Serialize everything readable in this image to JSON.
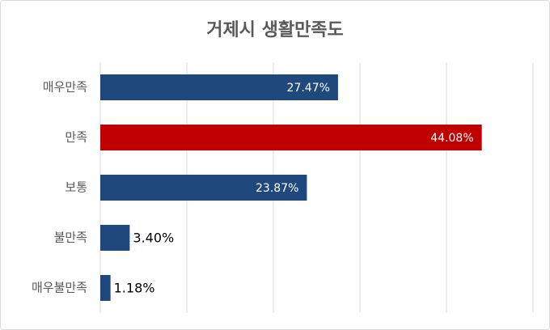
{
  "chart_data": {
    "type": "barh",
    "title": "거제시 생활만족도",
    "categories": [
      "매우만족",
      "만족",
      "보통",
      "불만족",
      "매우불만족"
    ],
    "values": [
      27.47,
      44.08,
      23.87,
      3.4,
      1.18
    ],
    "value_labels": [
      "27.47%",
      "44.08%",
      "23.87%",
      "3.40%",
      "1.18%"
    ],
    "colors": [
      "#1f497d",
      "#c00000",
      "#1f497d",
      "#1f497d",
      "#1f497d"
    ],
    "xlim": [
      0,
      50
    ],
    "xticks": [
      0,
      10,
      20,
      30,
      40,
      50
    ],
    "grid": true
  }
}
